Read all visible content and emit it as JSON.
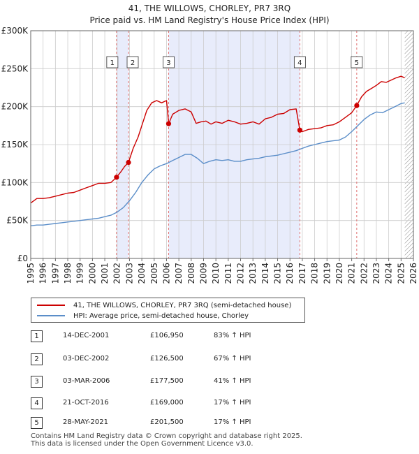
{
  "title_line1": "41, THE WILLOWS, CHORLEY, PR7 3RQ",
  "title_line2": "Price paid vs. HM Land Registry's House Price Index (HPI)",
  "colors": {
    "price_line": "#cc0000",
    "hpi_line": "#5b8ec9",
    "highlight_band": "#e8ecfb",
    "marker_dash": "#e07070",
    "hatch": "#888888",
    "grid": "#cccccc"
  },
  "legend": {
    "price_label": "41, THE WILLOWS, CHORLEY, PR7 3RQ (semi-detached house)",
    "hpi_label": "HPI: Average price, semi-detached house, Chorley"
  },
  "sales": [
    {
      "num": "1",
      "date": "14-DEC-2001",
      "price": "£106,950",
      "hpi": "83% ↑ HPI"
    },
    {
      "num": "2",
      "date": "03-DEC-2002",
      "price": "£126,500",
      "hpi": "67% ↑ HPI"
    },
    {
      "num": "3",
      "date": "03-MAR-2006",
      "price": "£177,500",
      "hpi": "41% ↑ HPI"
    },
    {
      "num": "4",
      "date": "21-OCT-2016",
      "price": "£169,000",
      "hpi": "17% ↑ HPI"
    },
    {
      "num": "5",
      "date": "28-MAY-2021",
      "price": "£201,500",
      "hpi": "17% ↑ HPI"
    }
  ],
  "footer_line1": "Contains HM Land Registry data © Crown copyright and database right 2025.",
  "footer_line2": "This data is licensed under the Open Government Licence v3.0.",
  "chart_data": {
    "type": "line",
    "title": "41, THE WILLOWS, CHORLEY, PR7 3RQ — Price paid vs. HM Land Registry's House Price Index (HPI)",
    "xlabel": "",
    "ylabel": "",
    "xlim": [
      1995,
      2026
    ],
    "ylim": [
      0,
      300000
    ],
    "x_ticks": [
      1995,
      1996,
      1997,
      1998,
      1999,
      2000,
      2001,
      2002,
      2003,
      2004,
      2005,
      2006,
      2007,
      2008,
      2009,
      2010,
      2011,
      2012,
      2013,
      2014,
      2015,
      2016,
      2017,
      2018,
      2019,
      2020,
      2021,
      2022,
      2023,
      2024,
      2025,
      2026
    ],
    "y_ticks": [
      0,
      50000,
      100000,
      150000,
      200000,
      250000,
      300000
    ],
    "y_tick_labels": [
      "£0",
      "£50K",
      "£100K",
      "£150K",
      "£200K",
      "£250K",
      "£300K"
    ],
    "grid": true,
    "legend_position": "below",
    "highlight_bands": [
      [
        2001.95,
        2002.92
      ],
      [
        2006.17,
        2016.8
      ]
    ],
    "future_hatch_from": 2025.3,
    "sale_markers": [
      {
        "label": "1",
        "x": 2001.95,
        "y": 106950
      },
      {
        "label": "2",
        "x": 2002.92,
        "y": 126500
      },
      {
        "label": "3",
        "x": 2006.17,
        "y": 177500
      },
      {
        "label": "4",
        "x": 2016.8,
        "y": 169000
      },
      {
        "label": "5",
        "x": 2021.41,
        "y": 201500
      }
    ],
    "series": [
      {
        "name": "41, THE WILLOWS, CHORLEY, PR7 3RQ (semi-detached house)",
        "x": [
          1995.0,
          1995.5,
          1996.0,
          1996.5,
          1997.0,
          1997.5,
          1998.0,
          1998.5,
          1999.0,
          1999.5,
          2000.0,
          2000.5,
          2001.0,
          2001.5,
          2001.95,
          2002.3,
          2002.6,
          2002.92,
          2003.3,
          2003.7,
          2004.0,
          2004.4,
          2004.8,
          2005.2,
          2005.6,
          2006.0,
          2006.17,
          2006.5,
          2007.0,
          2007.5,
          2008.0,
          2008.4,
          2008.8,
          2009.2,
          2009.6,
          2010.0,
          2010.5,
          2011.0,
          2011.5,
          2012.0,
          2012.5,
          2013.0,
          2013.5,
          2014.0,
          2014.5,
          2015.0,
          2015.5,
          2016.0,
          2016.5,
          2016.8,
          2017.0,
          2017.5,
          2018.0,
          2018.5,
          2019.0,
          2019.5,
          2020.0,
          2020.5,
          2021.0,
          2021.41,
          2021.8,
          2022.2,
          2022.6,
          2023.0,
          2023.4,
          2023.8,
          2024.2,
          2024.6,
          2025.0,
          2025.3
        ],
        "values": [
          73000,
          79000,
          79000,
          80000,
          82000,
          84000,
          86000,
          87000,
          90000,
          93000,
          96000,
          99000,
          99000,
          100000,
          106950,
          114000,
          121000,
          126500,
          145000,
          160000,
          175000,
          195000,
          205000,
          208000,
          205000,
          208000,
          177500,
          190000,
          195000,
          197000,
          193000,
          178000,
          180000,
          181000,
          177000,
          180000,
          178000,
          182000,
          180000,
          177000,
          178000,
          180000,
          177000,
          184000,
          186000,
          190000,
          191000,
          196000,
          197000,
          169000,
          167000,
          170000,
          171000,
          172000,
          175000,
          176000,
          180000,
          186000,
          192000,
          201500,
          213000,
          220000,
          224000,
          228000,
          233000,
          232000,
          235000,
          238000,
          240000,
          238000
        ]
      },
      {
        "name": "HPI: Average price, semi-detached house, Chorley",
        "x": [
          1995.0,
          1995.5,
          1996.0,
          1996.5,
          1997.0,
          1997.5,
          1998.0,
          1998.5,
          1999.0,
          1999.5,
          2000.0,
          2000.5,
          2001.0,
          2001.5,
          2002.0,
          2002.5,
          2003.0,
          2003.5,
          2004.0,
          2004.5,
          2005.0,
          2005.5,
          2006.0,
          2006.5,
          2007.0,
          2007.5,
          2008.0,
          2008.5,
          2009.0,
          2009.5,
          2010.0,
          2010.5,
          2011.0,
          2011.5,
          2012.0,
          2012.5,
          2013.0,
          2013.5,
          2014.0,
          2014.5,
          2015.0,
          2015.5,
          2016.0,
          2016.5,
          2017.0,
          2017.5,
          2018.0,
          2018.5,
          2019.0,
          2019.5,
          2020.0,
          2020.5,
          2021.0,
          2021.5,
          2022.0,
          2022.5,
          2023.0,
          2023.5,
          2024.0,
          2024.5,
          2025.0,
          2025.3
        ],
        "values": [
          43000,
          44000,
          44000,
          45000,
          46000,
          47000,
          48000,
          49000,
          50000,
          51000,
          52000,
          53000,
          55000,
          57000,
          61000,
          67000,
          76000,
          87000,
          100000,
          110000,
          118000,
          122000,
          125000,
          129000,
          133000,
          137000,
          137000,
          132000,
          125000,
          128000,
          130000,
          129000,
          130000,
          128000,
          128000,
          130000,
          131000,
          132000,
          134000,
          135000,
          136000,
          138000,
          140000,
          142000,
          145000,
          148000,
          150000,
          152000,
          154000,
          155000,
          156000,
          160000,
          167000,
          175000,
          183000,
          189000,
          193000,
          192000,
          196000,
          200000,
          204000,
          205000
        ]
      }
    ]
  }
}
